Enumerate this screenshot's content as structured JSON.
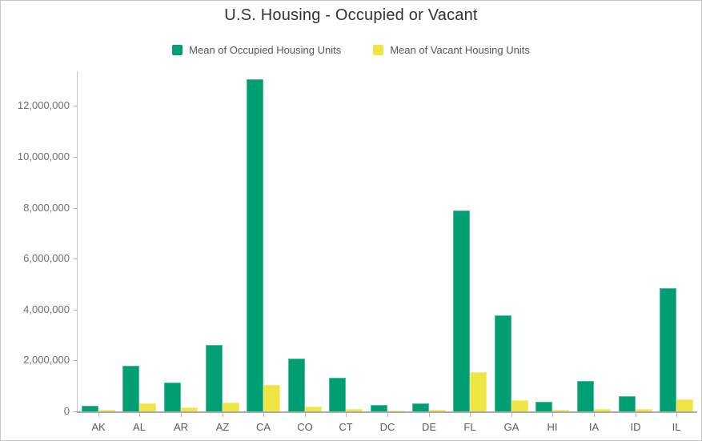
{
  "chart_data": {
    "type": "bar",
    "title": "U.S. Housing - Occupied or Vacant",
    "categories": [
      "AK",
      "AL",
      "AR",
      "AZ",
      "CA",
      "CO",
      "CT",
      "DC",
      "DE",
      "FL",
      "GA",
      "HI",
      "IA",
      "ID",
      "IL"
    ],
    "series": [
      {
        "name": "Mean of Occupied Housing Units",
        "color": "#009e73",
        "border_color": "#4fbe9b",
        "values": [
          220000,
          1800000,
          1120000,
          2600000,
          13050000,
          2070000,
          1310000,
          240000,
          320000,
          7900000,
          3780000,
          390000,
          1210000,
          600000,
          4850000
        ]
      },
      {
        "name": "Mean of Vacant Housing Units",
        "color": "#f0e442",
        "border_color": "#f5ed7e",
        "values": [
          60000,
          320000,
          160000,
          340000,
          1050000,
          180000,
          110000,
          30000,
          70000,
          1550000,
          450000,
          70000,
          110000,
          80000,
          460000
        ]
      }
    ],
    "xlabel": "",
    "ylabel": "",
    "ylim": [
      0,
      13400000
    ],
    "yticks": [
      0,
      2000000,
      4000000,
      6000000,
      8000000,
      10000000,
      12000000
    ],
    "grid": false,
    "legend_position": "top"
  }
}
